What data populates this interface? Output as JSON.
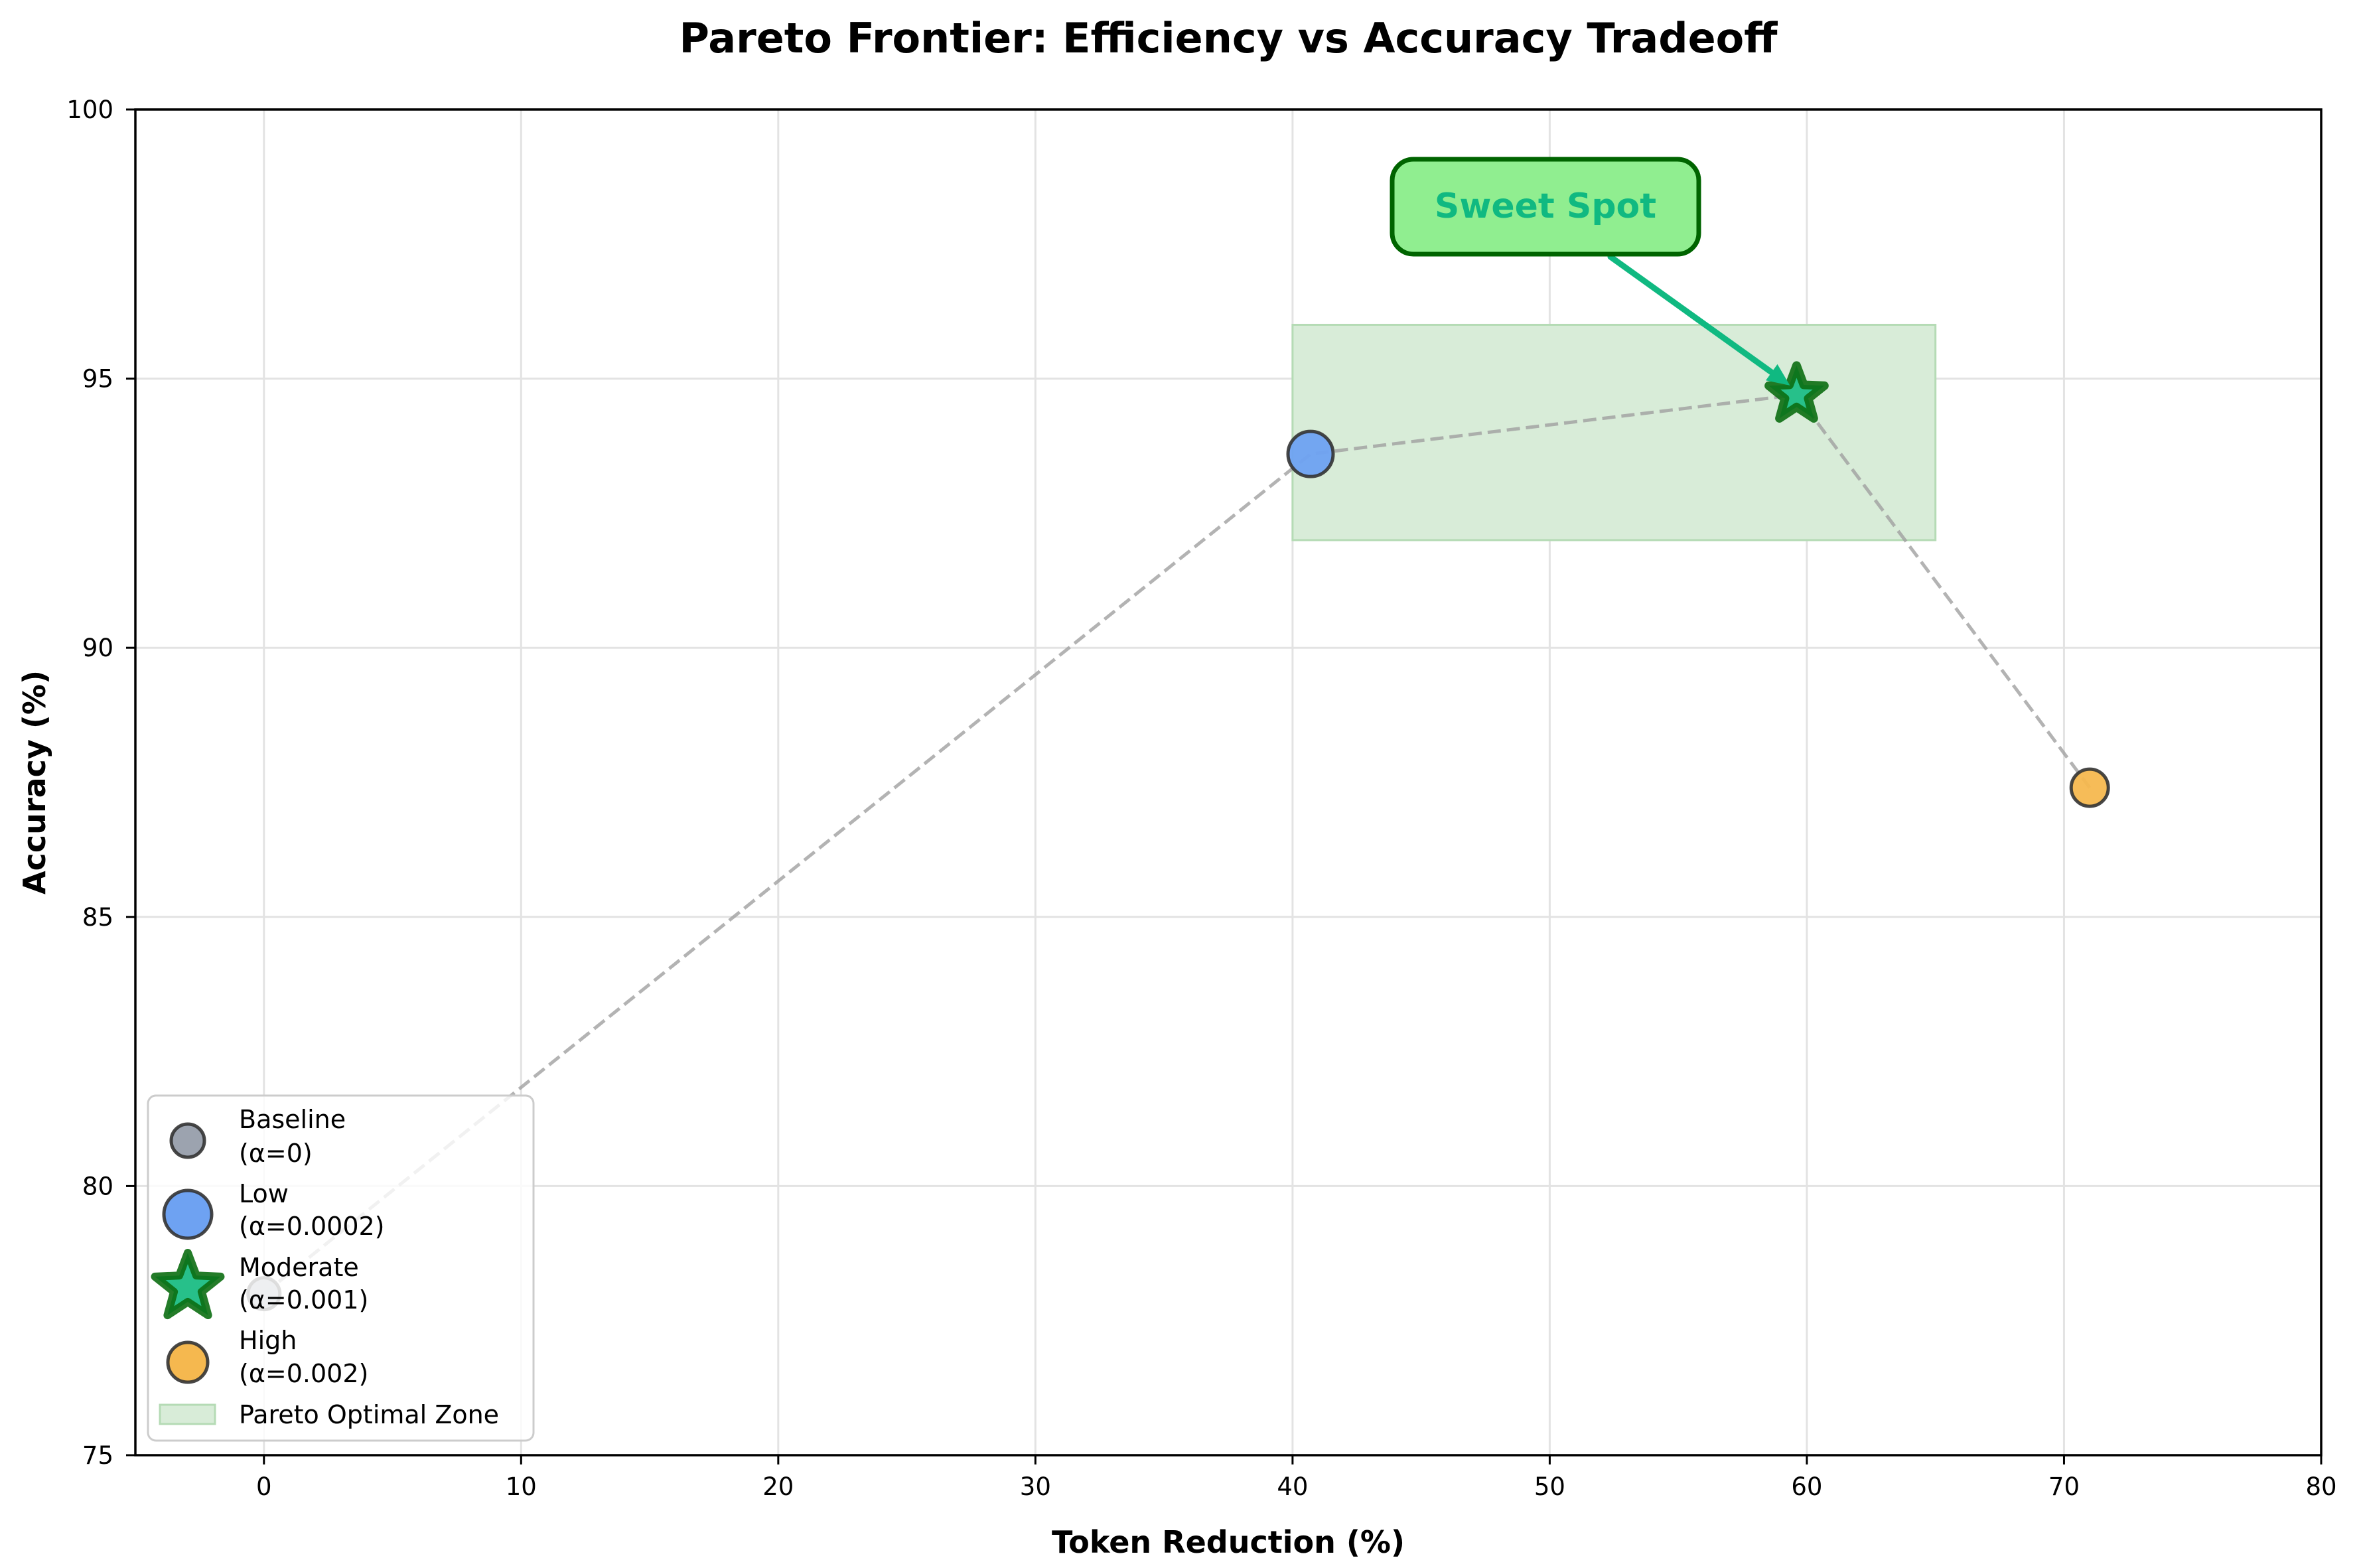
{
  "chart_data": {
    "type": "scatter",
    "title": "Pareto Frontier: Efficiency vs Accuracy Tradeoff",
    "xlabel": "Token Reduction (%)",
    "ylabel": "Accuracy (%)",
    "xlim": [
      -5,
      80
    ],
    "ylim": [
      75,
      100
    ],
    "xticks": [
      0,
      10,
      20,
      30,
      40,
      50,
      60,
      70,
      80
    ],
    "yticks": [
      75,
      80,
      85,
      90,
      95,
      100
    ],
    "grid": true,
    "legend_position": "lower left",
    "series": [
      {
        "name": "Baseline",
        "sublabel": "(α=0)",
        "x": 0,
        "y": 78.0,
        "marker": "circle",
        "size": 24,
        "color": "#9ca3af",
        "edge": "#333333"
      },
      {
        "name": "Low",
        "sublabel": "(α=0.0002)",
        "x": 40.7,
        "y": 93.6,
        "marker": "circle",
        "size": 34,
        "color": "#6ea2f2",
        "edge": "#333333"
      },
      {
        "name": "Moderate",
        "sublabel": "(α=0.001)",
        "x": 59.6,
        "y": 94.7,
        "marker": "star",
        "size": 44,
        "color": "#27c08a",
        "edge": "#0c6e12"
      },
      {
        "name": "High",
        "sublabel": "(α=0.002)",
        "x": 71.0,
        "y": 87.4,
        "marker": "circle",
        "size": 28,
        "color": "#f5b84f",
        "edge": "#333333"
      }
    ],
    "frontier_line": {
      "style": "dashed",
      "color": "#a0a0a0",
      "points": [
        [
          0,
          78.0
        ],
        [
          40.7,
          93.6
        ],
        [
          59.6,
          94.7
        ],
        [
          71.0,
          87.4
        ]
      ]
    },
    "shaded_region": {
      "label": "Pareto Optimal Zone",
      "x": [
        40,
        65
      ],
      "y": [
        92,
        96
      ],
      "color": "#d8ecd8",
      "edge": "#b5dbb5"
    },
    "annotation": {
      "text": "Sweet Spot",
      "text_x": 50,
      "text_y": 98,
      "target_x": 59.6,
      "target_y": 94.7,
      "text_color": "#10b981",
      "box_fill": "#90ee90",
      "box_edge": "#006400",
      "arrow_color": "#10b981"
    }
  },
  "legend": {
    "items": [
      {
        "line1": "Baseline",
        "line2": "(α=0)"
      },
      {
        "line1": "Low",
        "line2": "(α=0.0002)"
      },
      {
        "line1": "Moderate",
        "line2": "(α=0.001)"
      },
      {
        "line1": "High",
        "line2": "(α=0.002)"
      }
    ],
    "zone_label": "Pareto Optimal Zone"
  }
}
